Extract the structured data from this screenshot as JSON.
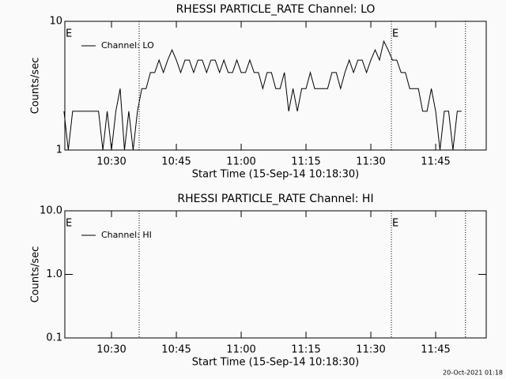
{
  "chart_data": [
    {
      "type": "line",
      "title": "RHESSI PARTICLE_RATE Channel: LO",
      "xlabel": "Start Time (15-Sep-14 10:18:30)",
      "ylabel": "Counts/sec",
      "x": [
        19,
        20,
        21,
        22,
        23,
        24,
        25,
        26,
        27,
        28,
        29,
        30,
        31,
        32,
        33,
        34,
        35,
        36,
        37,
        38,
        39,
        40,
        41,
        42,
        43,
        44,
        45,
        46,
        47,
        48,
        49,
        50,
        51,
        52,
        53,
        54,
        55,
        56,
        57,
        58,
        59,
        60,
        61,
        62,
        63,
        64,
        65,
        66,
        67,
        68,
        69,
        70,
        71,
        72,
        73,
        74,
        75,
        76,
        77,
        78,
        79,
        80,
        81,
        82,
        83,
        84,
        85,
        86,
        87,
        88,
        89,
        90,
        91,
        92,
        93,
        94,
        95,
        96,
        97,
        98,
        99,
        100,
        101,
        102,
        103,
        104,
        105,
        106,
        107,
        108,
        109,
        110,
        111
      ],
      "series": [
        {
          "name": "Channel: LO",
          "color": "#000000",
          "values": [
            2,
            1,
            2,
            2,
            2,
            2,
            2,
            2,
            2,
            1,
            2,
            1,
            2,
            3,
            1,
            2,
            1,
            2,
            3,
            3,
            4,
            4,
            5,
            4,
            5,
            6,
            5,
            4,
            5,
            5,
            4,
            5,
            5,
            4,
            5,
            5,
            4,
            5,
            4,
            4,
            5,
            4,
            4,
            5,
            4,
            4,
            3,
            4,
            4,
            3,
            3,
            4,
            2,
            3,
            2,
            3,
            3,
            4,
            3,
            3,
            3,
            3,
            4,
            4,
            3,
            4,
            5,
            4,
            5,
            5,
            4,
            5,
            6,
            5,
            7,
            6,
            5,
            5,
            4,
            4,
            3,
            3,
            3,
            2,
            2,
            3,
            2,
            1,
            2,
            2,
            1,
            2,
            2
          ]
        }
      ],
      "xlim": [
        19.2,
        116.7
      ],
      "xticks": [
        {
          "value": 30,
          "label": "10:30"
        },
        {
          "value": 45,
          "label": "10:45"
        },
        {
          "value": 60,
          "label": "11:00"
        },
        {
          "value": 75,
          "label": "11:15"
        },
        {
          "value": 90,
          "label": "11:30"
        },
        {
          "value": 105,
          "label": "11:45"
        }
      ],
      "ylim": [
        1,
        10
      ],
      "yticks": [
        1,
        10
      ],
      "log_y": true,
      "legend": "upper left",
      "vlines": [
        36.4,
        94.75,
        111.9
      ],
      "annotations": [
        {
          "text": "E",
          "x": 19.2
        },
        {
          "text": "E",
          "x": 94.75
        }
      ]
    },
    {
      "type": "line",
      "title": "RHESSI PARTICLE_RATE Channel: HI",
      "xlabel": "Start Time (15-Sep-14 10:18:30)",
      "ylabel": "Counts/sec",
      "x": [],
      "series": [
        {
          "name": "Channel: HI",
          "color": "#000000",
          "values": []
        }
      ],
      "xlim": [
        19.2,
        116.7
      ],
      "xticks": [
        {
          "value": 30,
          "label": "10:30"
        },
        {
          "value": 45,
          "label": "10:45"
        },
        {
          "value": 60,
          "label": "11:00"
        },
        {
          "value": 75,
          "label": "11:15"
        },
        {
          "value": 90,
          "label": "11:30"
        },
        {
          "value": 105,
          "label": "11:45"
        }
      ],
      "ylim": [
        0.1,
        10
      ],
      "yticks": [
        {
          "value": 0.1,
          "label": "0.1"
        },
        {
          "value": 1,
          "label": "1.0"
        },
        {
          "value": 10,
          "label": "10.0"
        }
      ],
      "log_y": true,
      "legend": "upper left",
      "vlines": [
        36.4,
        94.75,
        111.9
      ],
      "annotations": [
        {
          "text": "E",
          "x": 19.2
        },
        {
          "text": "E",
          "x": 94.75
        }
      ]
    }
  ],
  "footer": "20-Oct-2021 01:18"
}
